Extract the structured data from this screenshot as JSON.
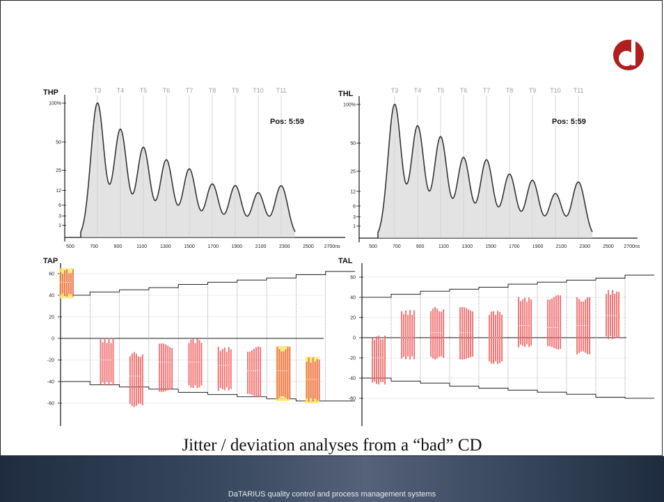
{
  "caption": "Jitter / deviation analyses from a “bad” CD",
  "footer": "DaTARIUS quality control  and process management systems",
  "logo": {
    "letter": "d",
    "colors": {
      "ring": "#b01e1e",
      "inner": "#ffffff"
    }
  },
  "colors": {
    "curve": "#333333",
    "fill": "#d0d0d0",
    "jitter": "#ee6666",
    "highlight": "#f7ea6e",
    "grid": "#bbbbbb",
    "axis": "#111111"
  },
  "chart_data": [
    {
      "id": "THP",
      "type": "area",
      "title": "THP",
      "position_label": "Pos:  5:59",
      "top_labels": [
        "T3",
        "T4",
        "T5",
        "T6",
        "T7",
        "T8",
        "T9",
        "T10",
        "T11"
      ],
      "x_ticks": [
        "500",
        "700",
        "900",
        "1100",
        "1300",
        "1500",
        "1700",
        "1900",
        "2100",
        "2300",
        "2500",
        "2700ns"
      ],
      "x_tick_values": [
        500,
        700,
        900,
        1100,
        1300,
        1500,
        1700,
        1900,
        2100,
        2300,
        2500,
        2700
      ],
      "y_ticks": [
        "100%",
        "50",
        "25",
        "12",
        "6",
        "3",
        "1"
      ],
      "xlim": [
        500,
        2700
      ],
      "peaks": [
        {
          "x": 700,
          "y": 100
        },
        {
          "x": 900,
          "y": 66
        },
        {
          "x": 1100,
          "y": 45
        },
        {
          "x": 1300,
          "y": 34
        },
        {
          "x": 1500,
          "y": 26
        },
        {
          "x": 1700,
          "y": 16
        },
        {
          "x": 1900,
          "y": 15
        },
        {
          "x": 2100,
          "y": 11
        },
        {
          "x": 2300,
          "y": 15
        }
      ]
    },
    {
      "id": "THL",
      "type": "area",
      "title": "THL",
      "position_label": "Pos:  5:59",
      "top_labels": [
        "T3",
        "T4",
        "T5",
        "T6",
        "T7",
        "T8",
        "T9",
        "T10",
        "T11"
      ],
      "x_ticks": [
        "500",
        "700",
        "900",
        "1100",
        "1300",
        "1500",
        "1700",
        "1900",
        "2100",
        "2300",
        "2500",
        "2700ns"
      ],
      "x_tick_values": [
        500,
        700,
        900,
        1100,
        1300,
        1500,
        1700,
        1900,
        2100,
        2300,
        2500,
        2700
      ],
      "y_ticks": [
        "100%",
        "50",
        "25",
        "12",
        "6",
        "3",
        "1"
      ],
      "xlim": [
        500,
        2700
      ],
      "peaks": [
        {
          "x": 700,
          "y": 100
        },
        {
          "x": 900,
          "y": 72
        },
        {
          "x": 1100,
          "y": 58
        },
        {
          "x": 1300,
          "y": 37
        },
        {
          "x": 1500,
          "y": 35
        },
        {
          "x": 1700,
          "y": 23
        },
        {
          "x": 1900,
          "y": 19
        },
        {
          "x": 2100,
          "y": 11
        },
        {
          "x": 2300,
          "y": 18
        }
      ]
    },
    {
      "id": "TAP",
      "type": "bar",
      "title": "TAP",
      "y_ticks": [
        "60",
        "40",
        "20",
        "0",
        "-20",
        "-40",
        "-60"
      ],
      "y_tick_values": [
        60,
        40,
        20,
        0,
        -20,
        -40,
        -60
      ],
      "ylim": [
        -80,
        80
      ],
      "upper_limits": [
        40,
        43,
        45,
        47,
        50,
        52,
        54,
        56,
        59,
        62
      ],
      "lower_limits": [
        -40,
        -43,
        -45,
        -47,
        -50,
        -52,
        -54,
        -56,
        -58,
        -58
      ],
      "groups": [
        {
          "center": 52,
          "low": 40,
          "high": 62,
          "highlight": true
        },
        {
          "center": -20,
          "low": -42,
          "high": -2,
          "highlight": false
        },
        {
          "center": -35,
          "low": -62,
          "high": -15,
          "highlight": false
        },
        {
          "center": -22,
          "low": -48,
          "high": -7,
          "highlight": false
        },
        {
          "center": -22,
          "low": -45,
          "high": -2,
          "highlight": false
        },
        {
          "center": -25,
          "low": -47,
          "high": -10,
          "highlight": false
        },
        {
          "center": -30,
          "low": -53,
          "high": -10,
          "highlight": false
        },
        {
          "center": -30,
          "low": -55,
          "high": -10,
          "highlight": true
        },
        {
          "center": -38,
          "low": -57,
          "high": -20,
          "highlight": true
        }
      ]
    },
    {
      "id": "TAL",
      "type": "bar",
      "title": "TAL",
      "y_ticks": [
        "60",
        "40",
        "20",
        "0",
        "-20",
        "-40",
        "-60"
      ],
      "y_tick_values": [
        60,
        40,
        20,
        0,
        -20,
        -40,
        -60
      ],
      "ylim": [
        -80,
        80
      ],
      "upper_limits": [
        40,
        43,
        46,
        48,
        50,
        53,
        55,
        57,
        59,
        62
      ],
      "lower_limits": [
        -40,
        -43,
        -45,
        -48,
        -50,
        -52,
        -54,
        -56,
        -59,
        -60
      ],
      "groups": [
        {
          "center": -20,
          "low": -45,
          "high": 0,
          "highlight": false
        },
        {
          "center": 0,
          "low": -20,
          "high": 25,
          "highlight": false
        },
        {
          "center": 5,
          "low": -20,
          "high": 28,
          "highlight": false
        },
        {
          "center": 5,
          "low": -20,
          "high": 28,
          "highlight": false
        },
        {
          "center": 0,
          "low": -25,
          "high": 25,
          "highlight": false
        },
        {
          "center": 12,
          "low": -8,
          "high": 38,
          "highlight": false
        },
        {
          "center": 10,
          "low": -10,
          "high": 40,
          "highlight": false
        },
        {
          "center": 12,
          "low": -15,
          "high": 38,
          "highlight": false
        },
        {
          "center": 22,
          "low": 0,
          "high": 45,
          "highlight": false
        }
      ]
    }
  ]
}
